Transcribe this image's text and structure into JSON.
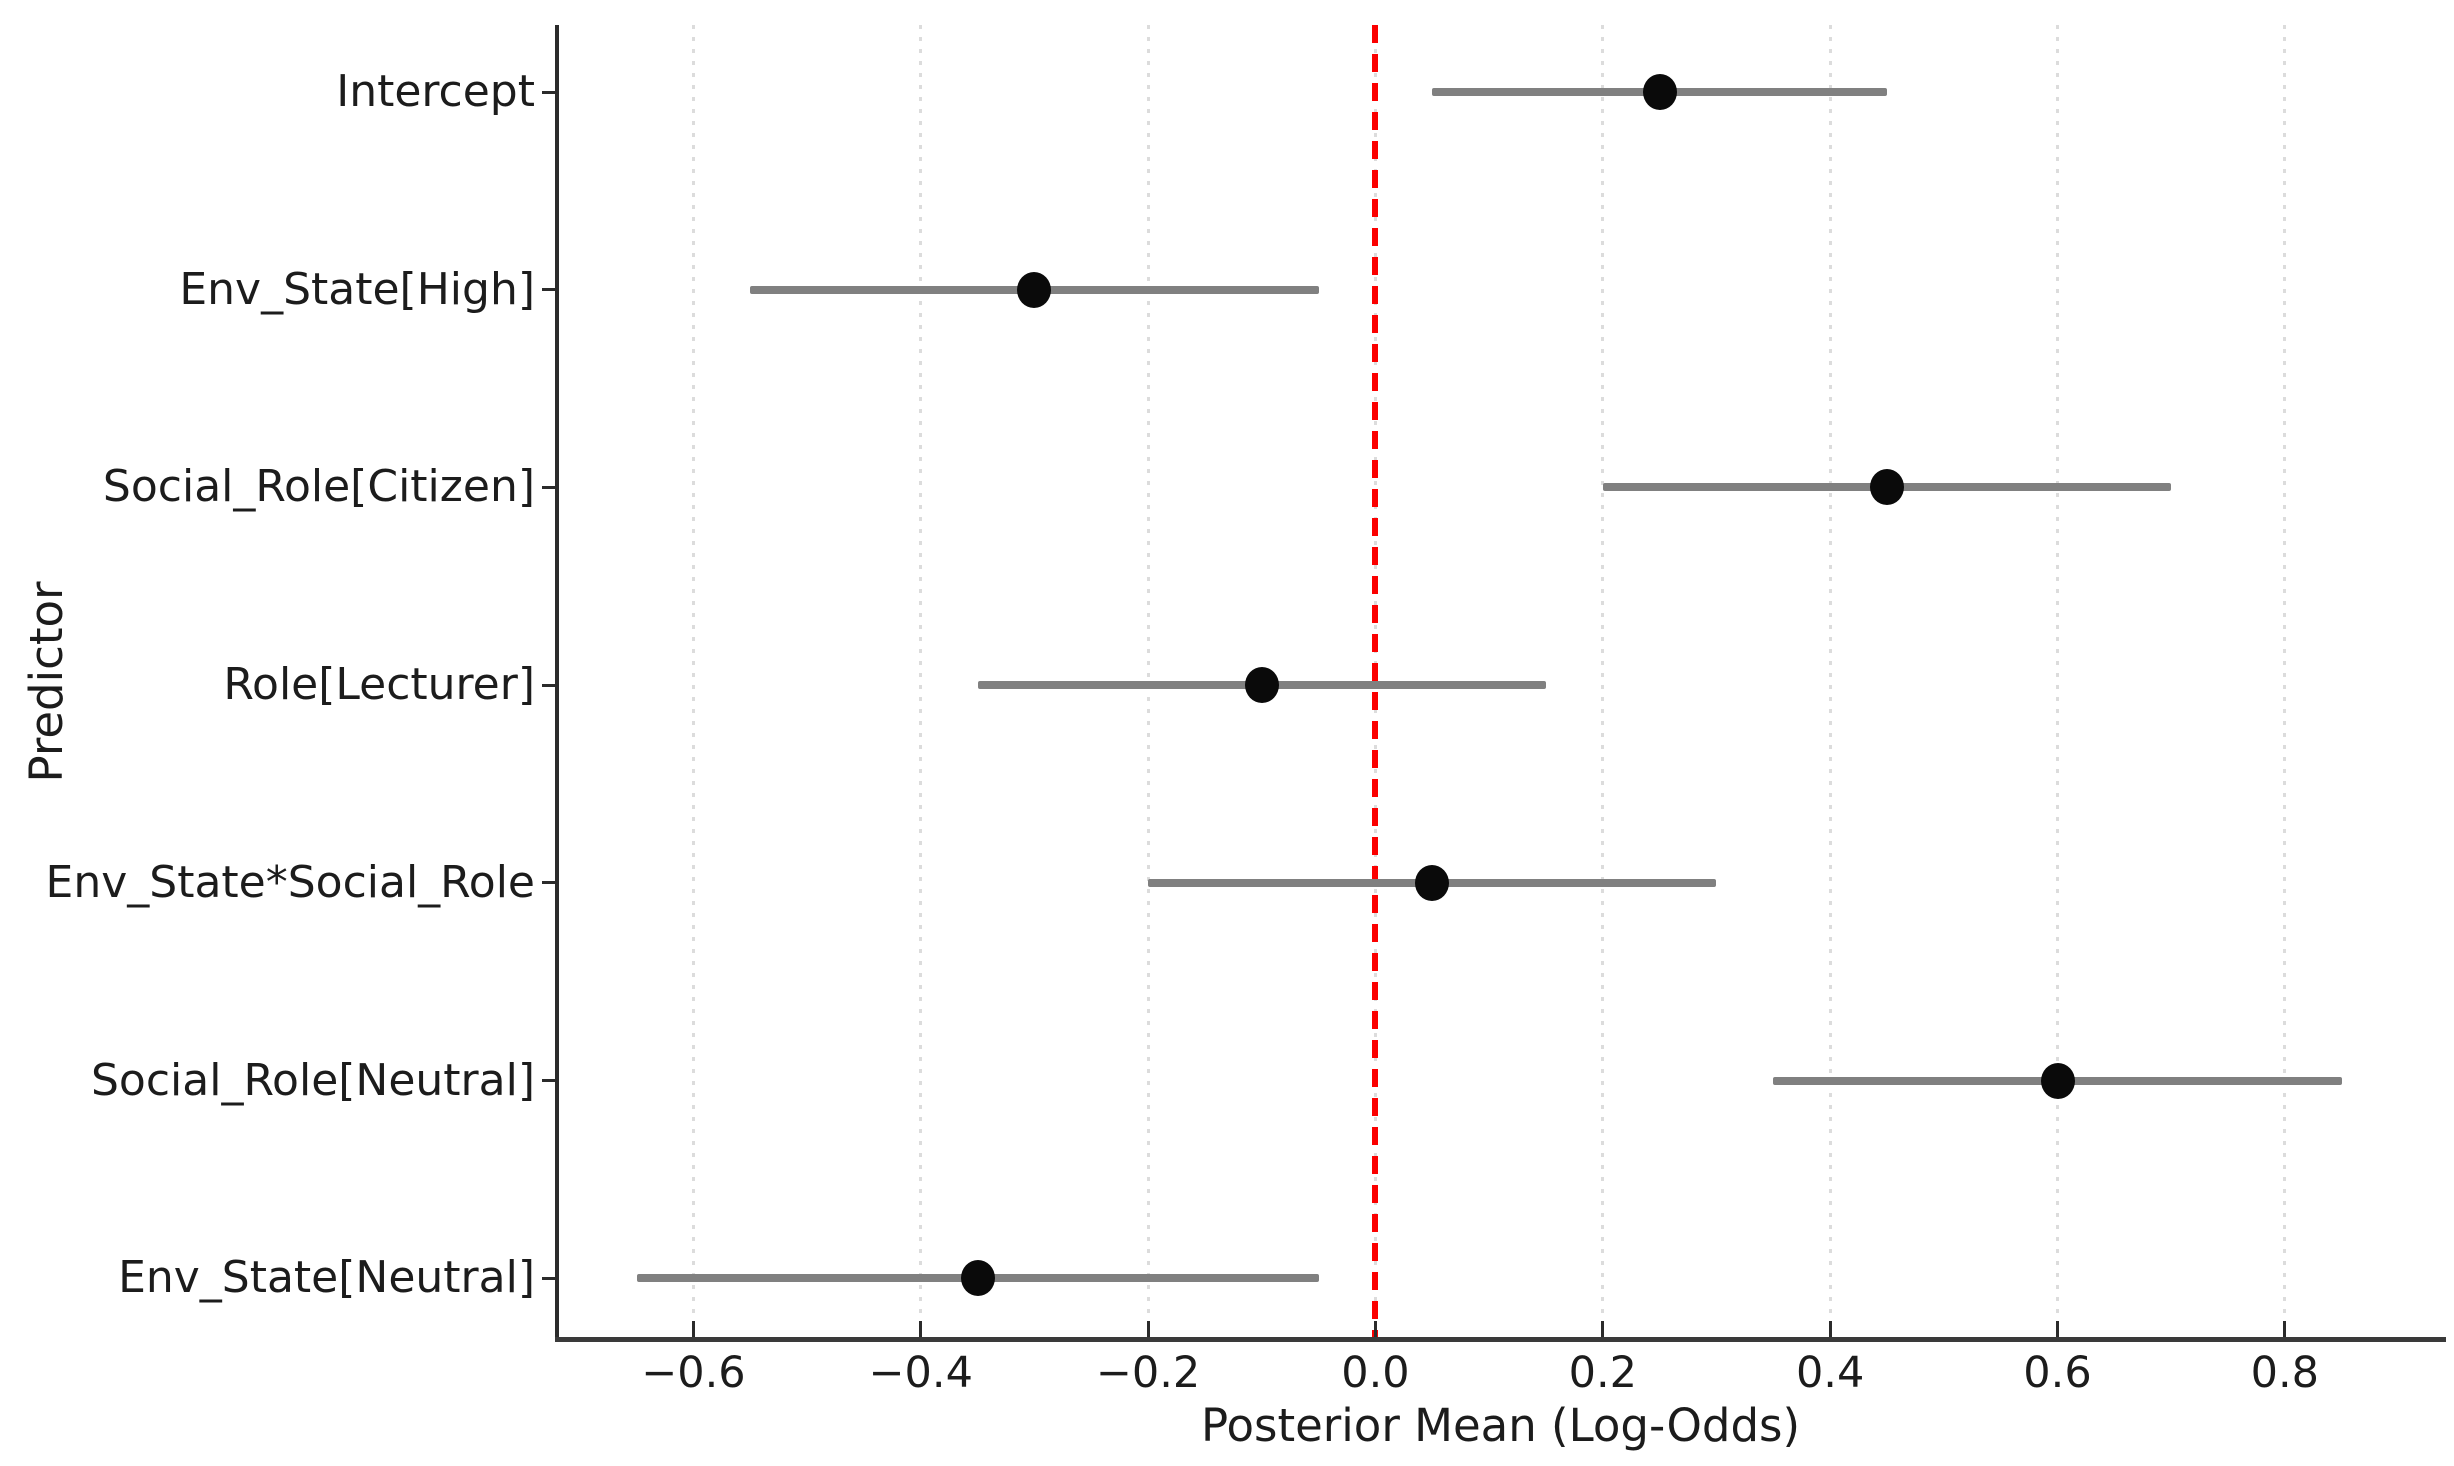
{
  "chart_data": {
    "type": "scatter",
    "variant": "forest-coefficient-plot",
    "title": "",
    "xlabel": "Posterior Mean (Log-Odds)",
    "ylabel": "Predictor",
    "xlim": [
      -0.72,
      0.94
    ],
    "xtick_values": [
      -0.6,
      -0.4,
      -0.2,
      0.0,
      0.2,
      0.4,
      0.6,
      0.8
    ],
    "xtick_labels": [
      "−0.6",
      "−0.4",
      "−0.2",
      "0.0",
      "0.2",
      "0.4",
      "0.6",
      "0.8"
    ],
    "grid": {
      "axis": "x",
      "style": "dotted",
      "on": true
    },
    "reference_line": {
      "x": 0.0,
      "orientation": "vertical",
      "style": "dashed"
    },
    "legend": "none",
    "points": [
      {
        "label": "Intercept",
        "mean": 0.25,
        "ci_lower": 0.05,
        "ci_upper": 0.45
      },
      {
        "label": "Env_State[High]",
        "mean": -0.3,
        "ci_lower": -0.55,
        "ci_upper": -0.05
      },
      {
        "label": "Social_Role[Citizen]",
        "mean": 0.45,
        "ci_lower": 0.2,
        "ci_upper": 0.7
      },
      {
        "label": "Role[Lecturer]",
        "mean": -0.1,
        "ci_lower": -0.35,
        "ci_upper": 0.15
      },
      {
        "label": "Env_State*Social_Role",
        "mean": 0.05,
        "ci_lower": -0.2,
        "ci_upper": 0.3
      },
      {
        "label": "Social_Role[Neutral]",
        "mean": 0.6,
        "ci_lower": 0.35,
        "ci_upper": 0.85
      },
      {
        "label": "Env_State[Neutral]",
        "mean": -0.35,
        "ci_lower": -0.65,
        "ci_upper": -0.05
      }
    ],
    "colors": {
      "marker": "#0a0a0a",
      "error_bar": "#808080",
      "reference_line": "#fb0000",
      "gridline": "#dcdcdc",
      "spine": "#2b2b2b",
      "tick": "#2b2b2b",
      "text": "#1c1c1c",
      "background": "#ffffff"
    }
  }
}
